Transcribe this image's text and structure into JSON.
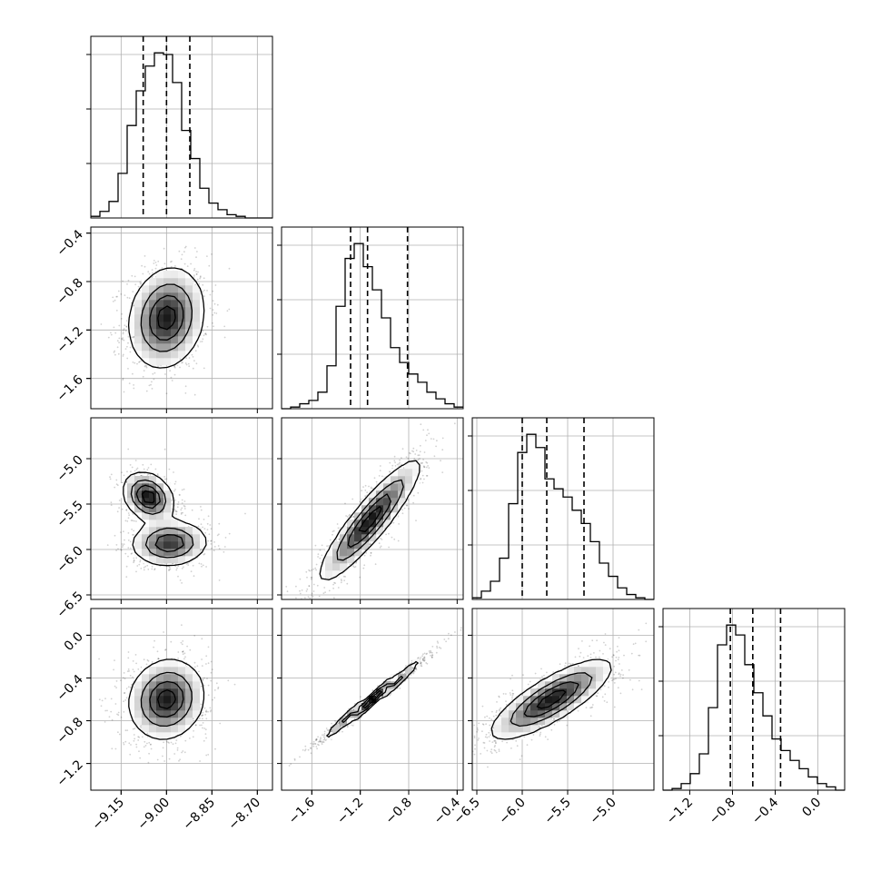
{
  "chart_data": {
    "type": "corner",
    "grid": true,
    "n_params": 4,
    "params": [
      {
        "range": [
          -9.25,
          -8.65
        ],
        "ticks": [
          -9.15,
          -9.0,
          -8.85,
          -8.7
        ],
        "tick_labels": [
          "−9.15",
          "−9.00",
          "−8.85",
          "−8.70"
        ],
        "quantiles": [
          -9.077,
          -9.0,
          -8.923
        ],
        "hist": {
          "edges_start": -9.25,
          "bin_width": 0.03,
          "counts": [
            1,
            4,
            10,
            27,
            56,
            77,
            92,
            100,
            99,
            82,
            53,
            36,
            18,
            9,
            5,
            2,
            1,
            0,
            0,
            0
          ]
        }
      },
      {
        "range": [
          -1.85,
          -0.35
        ],
        "ticks": [
          -1.6,
          -1.2,
          -0.8,
          -0.4
        ],
        "tick_labels": [
          "−1.6",
          "−1.2",
          "−0.8",
          "−0.4"
        ],
        "quantiles": [
          -1.28,
          -1.14,
          -0.81
        ],
        "hist": {
          "edges_start": -1.85,
          "bin_width": 0.075,
          "counts": [
            0,
            1,
            3,
            5,
            10,
            26,
            62,
            91,
            100,
            86,
            72,
            55,
            37,
            28,
            21,
            16,
            10,
            6,
            3,
            1
          ]
        }
      },
      {
        "range": [
          -6.55,
          -4.55
        ],
        "ticks": [
          -6.5,
          -6.0,
          -5.5,
          -5.0
        ],
        "tick_labels": [
          "−6.5",
          "−6.0",
          "−5.5",
          "−5.0"
        ],
        "quantiles": [
          -6.0,
          -5.73,
          -5.32
        ],
        "hist": {
          "edges_start": -6.55,
          "bin_width": 0.1,
          "counts": [
            1,
            5,
            11,
            25,
            58,
            89,
            100,
            92,
            73,
            67,
            62,
            54,
            46,
            35,
            22,
            14,
            7,
            3,
            1,
            0
          ]
        }
      },
      {
        "range": [
          -1.45,
          0.25
        ],
        "ticks": [
          -1.2,
          -0.8,
          -0.4,
          0.0
        ],
        "tick_labels": [
          "−1.2",
          "−0.8",
          "−0.4",
          "0.0"
        ],
        "quantiles": [
          -0.82,
          -0.61,
          -0.35
        ],
        "hist": {
          "edges_start": -1.45,
          "bin_width": 0.085,
          "counts": [
            0,
            1,
            4,
            10,
            22,
            50,
            88,
            100,
            94,
            76,
            59,
            45,
            31,
            24,
            18,
            13,
            8,
            4,
            2,
            0
          ]
        }
      }
    ],
    "pairs": [
      {
        "row": 1,
        "col": 0,
        "modes": [
          {
            "mu": [
              -9.0,
              -1.1
            ],
            "sd": [
              0.06,
              0.2
            ],
            "rho": 0.15,
            "w": 1
          }
        ]
      },
      {
        "row": 2,
        "col": 0,
        "modes": [
          {
            "mu": [
              -9.06,
              -5.42
            ],
            "sd": [
              0.04,
              0.13
            ],
            "rho": -0.25,
            "w": 0.45
          },
          {
            "mu": [
              -8.99,
              -5.93
            ],
            "sd": [
              0.06,
              0.12
            ],
            "rho": 0.05,
            "w": 0.55
          }
        ]
      },
      {
        "row": 2,
        "col": 1,
        "modes": [
          {
            "mu": [
              -1.12,
              -5.68
            ],
            "sd": [
              0.2,
              0.32
            ],
            "rho": 0.9,
            "w": 1
          }
        ]
      },
      {
        "row": 3,
        "col": 0,
        "modes": [
          {
            "mu": [
              -9.0,
              -0.6
            ],
            "sd": [
              0.06,
              0.18
            ],
            "rho": 0.1,
            "w": 1
          }
        ]
      },
      {
        "row": 3,
        "col": 1,
        "modes": [
          {
            "mu": [
              -1.1,
              -0.6
            ],
            "sd": [
              0.2,
              0.18
            ],
            "rho": 0.99,
            "w": 1
          }
        ]
      },
      {
        "row": 3,
        "col": 2,
        "modes": [
          {
            "mu": [
              -5.68,
              -0.6
            ],
            "sd": [
              0.32,
              0.18
            ],
            "rho": 0.8,
            "w": 1
          }
        ]
      }
    ]
  }
}
